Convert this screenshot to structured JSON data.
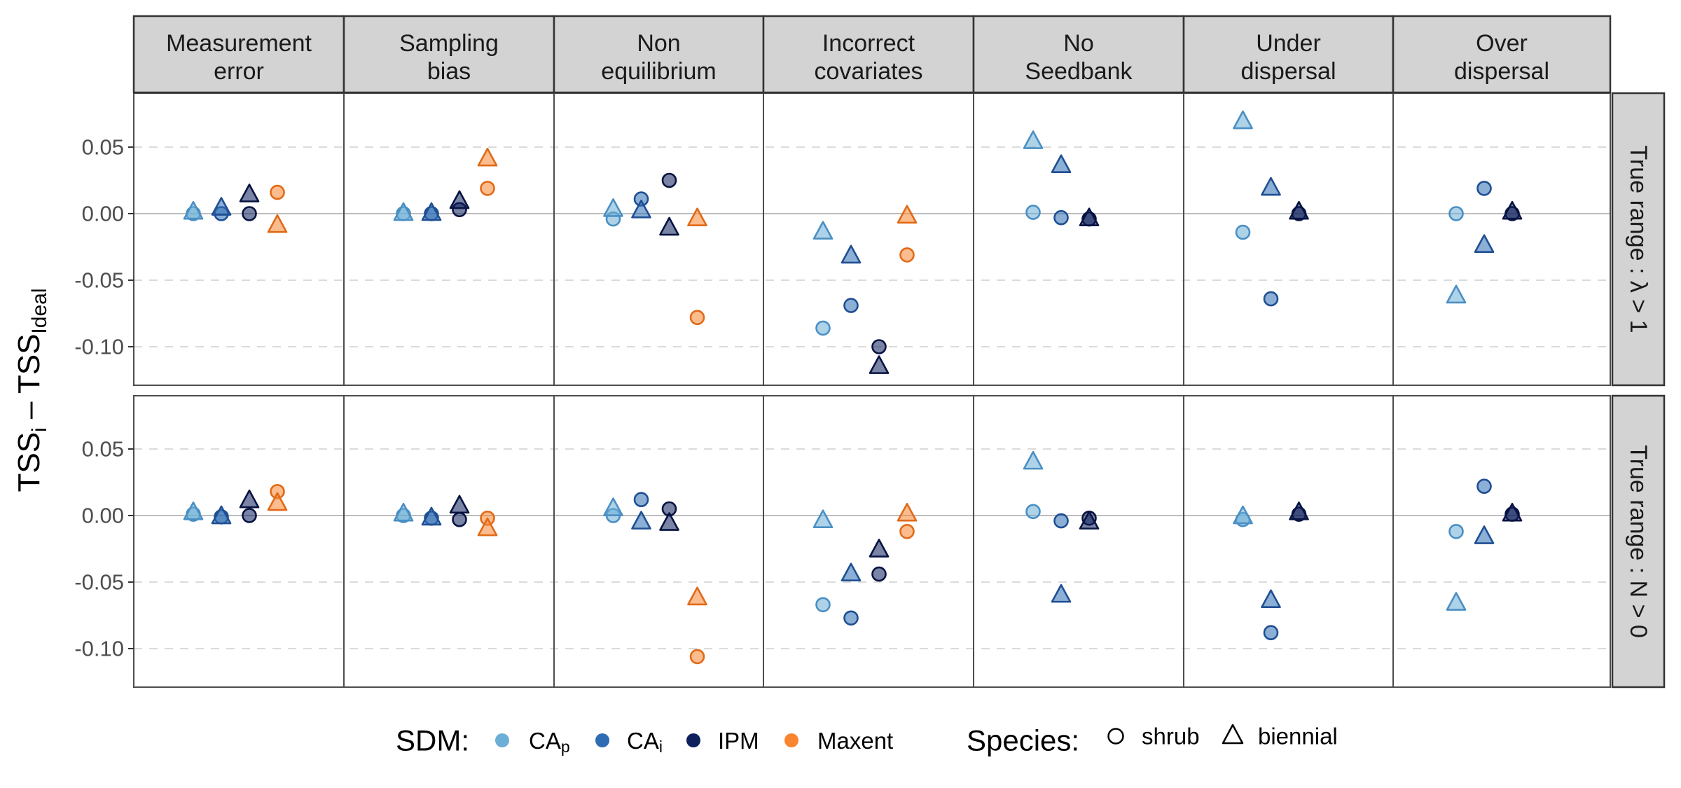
{
  "chart_data": {
    "type": "scatter",
    "panels": [
      "Measurement error",
      "Sampling bias",
      "Non equilibrium",
      "Incorrect covariates",
      "No Seedbank",
      "Under dispersal",
      "Over dispersal"
    ],
    "panel_labels": [
      [
        "Measurement",
        "error"
      ],
      [
        "Sampling",
        "bias"
      ],
      [
        "Non",
        "equilibrium"
      ],
      [
        "Incorrect",
        "covariates"
      ],
      [
        "No",
        "Seedbank"
      ],
      [
        "Under",
        "dispersal"
      ],
      [
        "Over",
        "dispersal"
      ]
    ],
    "rows": [
      {
        "label": "True range : λ > 1"
      },
      {
        "label": "True range : N > 0"
      }
    ],
    "ylabel": {
      "main": "TSS",
      "sub_i": "i",
      "mid": " – TSS",
      "sub_ideal": "Ideal"
    },
    "ylim": [
      -0.13,
      0.09
    ],
    "yticks": [
      0.05,
      0.0,
      -0.05,
      -0.1
    ],
    "ytick_labels": [
      "0.05",
      "0.00",
      "-0.05",
      "-0.10"
    ],
    "grid": true,
    "legend_position": "bottom",
    "sdm_legend": {
      "title": "SDM:",
      "items": [
        {
          "key": "CAp",
          "base": "CA",
          "sub": "p",
          "color": "#6BAED6"
        },
        {
          "key": "CAi",
          "base": "CA",
          "sub": "i",
          "color": "#2E6DB4"
        },
        {
          "key": "IPM",
          "base": "IPM",
          "sub": "",
          "color": "#0D1F5C"
        },
        {
          "key": "Maxent",
          "base": "Maxent",
          "sub": "",
          "color": "#F98532"
        }
      ]
    },
    "species_legend": {
      "title": "Species:",
      "items": [
        {
          "key": "shrub",
          "label": "shrub",
          "shape": "circle"
        },
        {
          "key": "biennial",
          "label": "biennial",
          "shape": "triangle"
        }
      ]
    },
    "series": [
      {
        "row": 0,
        "sdm": "CAp",
        "species": "shrub",
        "values": [
          0.0,
          0.0,
          -0.004,
          -0.086,
          0.001,
          -0.014,
          0.0
        ]
      },
      {
        "row": 0,
        "sdm": "CAp",
        "species": "biennial",
        "values": [
          0.001,
          0.0,
          0.003,
          -0.014,
          0.054,
          0.069,
          -0.062
        ]
      },
      {
        "row": 0,
        "sdm": "CAi",
        "species": "shrub",
        "values": [
          0.0,
          0.0,
          0.011,
          -0.069,
          -0.003,
          -0.064,
          0.019
        ]
      },
      {
        "row": 0,
        "sdm": "CAi",
        "species": "biennial",
        "values": [
          0.004,
          0.0,
          0.002,
          -0.032,
          0.036,
          0.019,
          -0.024
        ]
      },
      {
        "row": 0,
        "sdm": "IPM",
        "species": "shrub",
        "values": [
          0.0,
          0.003,
          0.025,
          -0.1,
          -0.004,
          0.0,
          0.0
        ]
      },
      {
        "row": 0,
        "sdm": "IPM",
        "species": "biennial",
        "values": [
          0.014,
          0.009,
          -0.011,
          -0.115,
          -0.004,
          0.001,
          0.001
        ]
      },
      {
        "row": 0,
        "sdm": "Maxent",
        "species": "shrub",
        "values": [
          0.016,
          0.019,
          -0.078,
          null,
          null,
          null,
          null
        ]
      },
      {
        "row": 0,
        "sdm": "Maxent",
        "species": "biennial",
        "values": [
          -0.009,
          0.041,
          -0.004,
          -0.002,
          null,
          null,
          null
        ]
      },
      {
        "row": 0,
        "sdm": "Maxent",
        "species": "shrub",
        "values": [
          null,
          null,
          null,
          -0.031,
          null,
          null,
          null
        ]
      },
      {
        "row": 1,
        "sdm": "CAp",
        "species": "shrub",
        "values": [
          0.001,
          0.0,
          0.0,
          -0.067,
          0.003,
          -0.003,
          -0.012
        ]
      },
      {
        "row": 1,
        "sdm": "CAp",
        "species": "biennial",
        "values": [
          0.002,
          0.001,
          0.005,
          -0.004,
          0.04,
          -0.001,
          -0.066
        ]
      },
      {
        "row": 1,
        "sdm": "CAi",
        "species": "shrub",
        "values": [
          -0.001,
          -0.002,
          0.012,
          -0.077,
          -0.004,
          -0.088,
          0.022
        ]
      },
      {
        "row": 1,
        "sdm": "CAi",
        "species": "biennial",
        "values": [
          -0.001,
          -0.002,
          -0.005,
          -0.044,
          -0.06,
          -0.064,
          -0.016
        ]
      },
      {
        "row": 1,
        "sdm": "IPM",
        "species": "shrub",
        "values": [
          0.0,
          -0.003,
          0.005,
          -0.044,
          -0.002,
          0.001,
          0.001
        ]
      },
      {
        "row": 1,
        "sdm": "IPM",
        "species": "biennial",
        "values": [
          0.011,
          0.007,
          -0.006,
          -0.026,
          -0.005,
          0.002,
          0.001
        ]
      },
      {
        "row": 1,
        "sdm": "Maxent",
        "species": "shrub",
        "values": [
          0.018,
          -0.002,
          -0.106,
          -0.012,
          null,
          null,
          null
        ]
      },
      {
        "row": 1,
        "sdm": "Maxent",
        "species": "biennial",
        "values": [
          0.009,
          -0.01,
          -0.062,
          0.001,
          null,
          null,
          null
        ]
      }
    ]
  }
}
